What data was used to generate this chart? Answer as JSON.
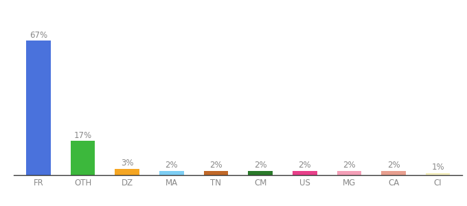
{
  "categories": [
    "FR",
    "OTH",
    "DZ",
    "MA",
    "TN",
    "CM",
    "US",
    "MG",
    "CA",
    "CI"
  ],
  "values": [
    67,
    17,
    3,
    2,
    2,
    2,
    2,
    2,
    2,
    1
  ],
  "bar_colors": [
    "#4a72dc",
    "#3cb83c",
    "#f5a623",
    "#7ecef4",
    "#c06828",
    "#2a7a2a",
    "#e8408a",
    "#f4a0b8",
    "#e8a090",
    "#f5f0c0"
  ],
  "labels": [
    "67%",
    "17%",
    "3%",
    "2%",
    "2%",
    "2%",
    "2%",
    "2%",
    "2%",
    "1%"
  ],
  "ylim": [
    0,
    75
  ],
  "background_color": "#ffffff",
  "label_fontsize": 8.5,
  "tick_fontsize": 8.5,
  "label_color": "#888888"
}
